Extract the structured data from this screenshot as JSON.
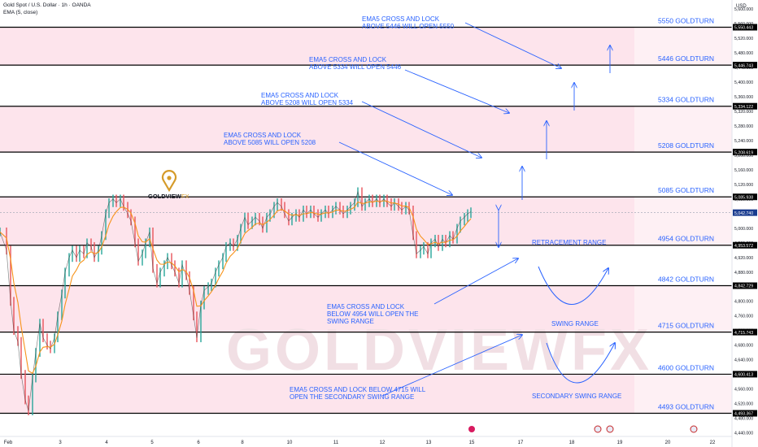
{
  "header": {
    "symbol": "Gold Spot / U.S. Dollar · 1h · OANDA",
    "indicator": "EMA (5, close)"
  },
  "colors": {
    "band": "#fde4ec",
    "level_line": "#000000",
    "label_blue": "#2962ff",
    "candle": "#e8535a",
    "ema": "#f7931a",
    "arrow": "#2962ff",
    "current_price": "#1a3c8f"
  },
  "chart_data": {
    "type": "line",
    "title": "Gold Spot / U.S. Dollar · 1h · OANDA",
    "ylabel": "USD",
    "ylim": [
      4430,
      5625
    ],
    "y_ticks": [
      4440,
      4480,
      4520,
      4560,
      4600,
      4640,
      4680,
      4720,
      4760,
      4800,
      4840,
      4880,
      4920,
      4960,
      5000,
      5040,
      5080,
      5120,
      5160,
      5200,
      5240,
      5280,
      5320,
      5360,
      5400,
      5440,
      5480,
      5520,
      5560,
      5600
    ],
    "x_labels": [
      "Feb",
      "3",
      "4",
      "5",
      "6",
      "8",
      "10",
      "11",
      "12",
      "13",
      "15",
      "17",
      "18",
      "19",
      "20",
      "22"
    ],
    "price_path": [
      {
        "x": 0,
        "y": 4990
      },
      {
        "x": 8,
        "y": 4940
      },
      {
        "x": 13,
        "y": 4800
      },
      {
        "x": 17,
        "y": 4720
      },
      {
        "x": 22,
        "y": 4690
      },
      {
        "x": 26,
        "y": 4600
      },
      {
        "x": 31,
        "y": 4530
      },
      {
        "x": 35,
        "y": 4500
      },
      {
        "x": 40,
        "y": 4590
      },
      {
        "x": 44,
        "y": 4660
      },
      {
        "x": 49,
        "y": 4740
      },
      {
        "x": 53,
        "y": 4700
      },
      {
        "x": 58,
        "y": 4680
      },
      {
        "x": 62,
        "y": 4670
      },
      {
        "x": 67,
        "y": 4700
      },
      {
        "x": 71,
        "y": 4760
      },
      {
        "x": 76,
        "y": 4820
      },
      {
        "x": 80,
        "y": 4880
      },
      {
        "x": 85,
        "y": 4920
      },
      {
        "x": 89,
        "y": 4940
      },
      {
        "x": 94,
        "y": 4920
      },
      {
        "x": 98,
        "y": 4940
      },
      {
        "x": 103,
        "y": 4930
      },
      {
        "x": 107,
        "y": 4960
      },
      {
        "x": 112,
        "y": 4950
      },
      {
        "x": 116,
        "y": 4920
      },
      {
        "x": 121,
        "y": 4940
      },
      {
        "x": 125,
        "y": 4980
      },
      {
        "x": 130,
        "y": 5040
      },
      {
        "x": 134,
        "y": 5070
      },
      {
        "x": 139,
        "y": 5080
      },
      {
        "x": 143,
        "y": 5070
      },
      {
        "x": 148,
        "y": 5080
      },
      {
        "x": 152,
        "y": 5060
      },
      {
        "x": 157,
        "y": 5040
      },
      {
        "x": 161,
        "y": 5020
      },
      {
        "x": 166,
        "y": 4960
      },
      {
        "x": 170,
        "y": 4910
      },
      {
        "x": 175,
        "y": 4930
      },
      {
        "x": 179,
        "y": 4960
      },
      {
        "x": 184,
        "y": 4990
      },
      {
        "x": 188,
        "y": 4890
      },
      {
        "x": 193,
        "y": 4850
      },
      {
        "x": 197,
        "y": 4880
      },
      {
        "x": 202,
        "y": 4900
      },
      {
        "x": 206,
        "y": 4920
      },
      {
        "x": 211,
        "y": 4900
      },
      {
        "x": 215,
        "y": 4880
      },
      {
        "x": 220,
        "y": 4850
      },
      {
        "x": 224,
        "y": 4900
      },
      {
        "x": 229,
        "y": 4870
      },
      {
        "x": 233,
        "y": 4830
      },
      {
        "x": 238,
        "y": 4760
      },
      {
        "x": 242,
        "y": 4700
      },
      {
        "x": 247,
        "y": 4790
      },
      {
        "x": 251,
        "y": 4830
      },
      {
        "x": 256,
        "y": 4840
      },
      {
        "x": 260,
        "y": 4850
      },
      {
        "x": 265,
        "y": 4880
      },
      {
        "x": 269,
        "y": 4900
      },
      {
        "x": 274,
        "y": 4920
      },
      {
        "x": 278,
        "y": 4950
      },
      {
        "x": 283,
        "y": 4960
      },
      {
        "x": 287,
        "y": 4950
      },
      {
        "x": 292,
        "y": 4970
      },
      {
        "x": 296,
        "y": 5000
      },
      {
        "x": 301,
        "y": 5030
      },
      {
        "x": 305,
        "y": 5010
      },
      {
        "x": 310,
        "y": 5020
      },
      {
        "x": 314,
        "y": 5030
      },
      {
        "x": 319,
        "y": 5020
      },
      {
        "x": 323,
        "y": 5000
      },
      {
        "x": 328,
        "y": 5030
      },
      {
        "x": 332,
        "y": 5040
      },
      {
        "x": 337,
        "y": 5060
      },
      {
        "x": 341,
        "y": 5070
      },
      {
        "x": 346,
        "y": 5060
      },
      {
        "x": 350,
        "y": 5040
      },
      {
        "x": 355,
        "y": 5020
      },
      {
        "x": 359,
        "y": 5030
      },
      {
        "x": 364,
        "y": 5040
      },
      {
        "x": 368,
        "y": 5030
      },
      {
        "x": 373,
        "y": 5050
      },
      {
        "x": 377,
        "y": 5040
      },
      {
        "x": 382,
        "y": 5050
      },
      {
        "x": 386,
        "y": 5040
      },
      {
        "x": 391,
        "y": 5030
      },
      {
        "x": 395,
        "y": 5040
      },
      {
        "x": 400,
        "y": 5050
      },
      {
        "x": 404,
        "y": 5040
      },
      {
        "x": 409,
        "y": 5050
      },
      {
        "x": 413,
        "y": 5060
      },
      {
        "x": 418,
        "y": 5050
      },
      {
        "x": 422,
        "y": 5040
      },
      {
        "x": 427,
        "y": 5050
      },
      {
        "x": 431,
        "y": 5060
      },
      {
        "x": 436,
        "y": 5070
      },
      {
        "x": 440,
        "y": 5100
      },
      {
        "x": 445,
        "y": 5060
      },
      {
        "x": 449,
        "y": 5070
      },
      {
        "x": 454,
        "y": 5080
      },
      {
        "x": 458,
        "y": 5070
      },
      {
        "x": 463,
        "y": 5080
      },
      {
        "x": 467,
        "y": 5070
      },
      {
        "x": 472,
        "y": 5080
      },
      {
        "x": 476,
        "y": 5070
      },
      {
        "x": 481,
        "y": 5060
      },
      {
        "x": 485,
        "y": 5070
      },
      {
        "x": 490,
        "y": 5060
      },
      {
        "x": 494,
        "y": 5050
      },
      {
        "x": 499,
        "y": 5060
      },
      {
        "x": 503,
        "y": 5050
      },
      {
        "x": 508,
        "y": 4980
      },
      {
        "x": 512,
        "y": 4930
      },
      {
        "x": 517,
        "y": 4940
      },
      {
        "x": 521,
        "y": 4950
      },
      {
        "x": 526,
        "y": 4930
      },
      {
        "x": 530,
        "y": 4960
      },
      {
        "x": 535,
        "y": 4970
      },
      {
        "x": 539,
        "y": 4950
      },
      {
        "x": 544,
        "y": 4970
      },
      {
        "x": 548,
        "y": 4960
      },
      {
        "x": 553,
        "y": 4980
      },
      {
        "x": 557,
        "y": 4970
      },
      {
        "x": 562,
        "y": 5000
      },
      {
        "x": 566,
        "y": 5020
      },
      {
        "x": 571,
        "y": 5030
      },
      {
        "x": 575,
        "y": 5040
      },
      {
        "x": 579,
        "y": 5045
      }
    ],
    "current_price": 5042.74,
    "levels": [
      {
        "name": "5550 GOLDTURN",
        "axis_tag": "5,550.443",
        "value": 5550.443
      },
      {
        "name": "5446 GOLDTURN",
        "axis_tag": "5,446.743",
        "value": 5446.743
      },
      {
        "name": "5334 GOLDTURN",
        "axis_tag": "5,334.122",
        "value": 5334.122
      },
      {
        "name": "5208 GOLDTURN",
        "axis_tag": "5,208.619",
        "value": 5208.619
      },
      {
        "name": "5085 GOLDTURN",
        "axis_tag": "5,085.938",
        "value": 5085.938
      },
      {
        "name": "4954 GOLDTURN",
        "axis_tag": "4,953.572",
        "value": 4953.572
      },
      {
        "name": "4842 GOLDTURN",
        "axis_tag": "4,842.729",
        "value": 4842.729
      },
      {
        "name": "4715 GOLDTURN",
        "axis_tag": "4,715.743",
        "value": 4715.743
      },
      {
        "name": "4600 GOLDTURN",
        "axis_tag": "4,600.413",
        "value": 4600.413
      },
      {
        "name": "4493 GOLDTURN",
        "axis_tag": "4,493.367",
        "value": 4493.367
      }
    ],
    "current_price_tag": "5,042.740",
    "annotations": [
      {
        "lines": [
          "EMA5 CROSS AND LOCK",
          "ABOVE 5446 WILL OPEN 5550"
        ]
      },
      {
        "lines": [
          "EMA5 CROSS AND LOCK",
          "ABOVE 5334 WILL OPEN 5446"
        ]
      },
      {
        "lines": [
          "EMA5 CROSS AND LOCK",
          "ABOVE 5208 WILL OPEN 5334"
        ]
      },
      {
        "lines": [
          "EMA5 CROSS AND LOCK",
          "ABOVE 5085 WILL OPEN 5208"
        ]
      },
      {
        "lines": [
          "EMA5 CROSS AND LOCK",
          "BELOW 4954 WILL OPEN THE",
          "SWING RANGE"
        ]
      },
      {
        "lines": [
          "EMA5 CROSS AND LOCK BELOW 4715 WILL",
          "OPEN THE SECONDARY SWING RANGE"
        ]
      }
    ],
    "range_labels": [
      "RETRACEMENT RANGE",
      "SWING RANGE",
      "SECONDARY SWING RANGE"
    ],
    "logo": {
      "brand_left": "GOLDVIEW",
      "brand_right": "FX"
    },
    "watermark": "GOLDVIEWFX"
  }
}
